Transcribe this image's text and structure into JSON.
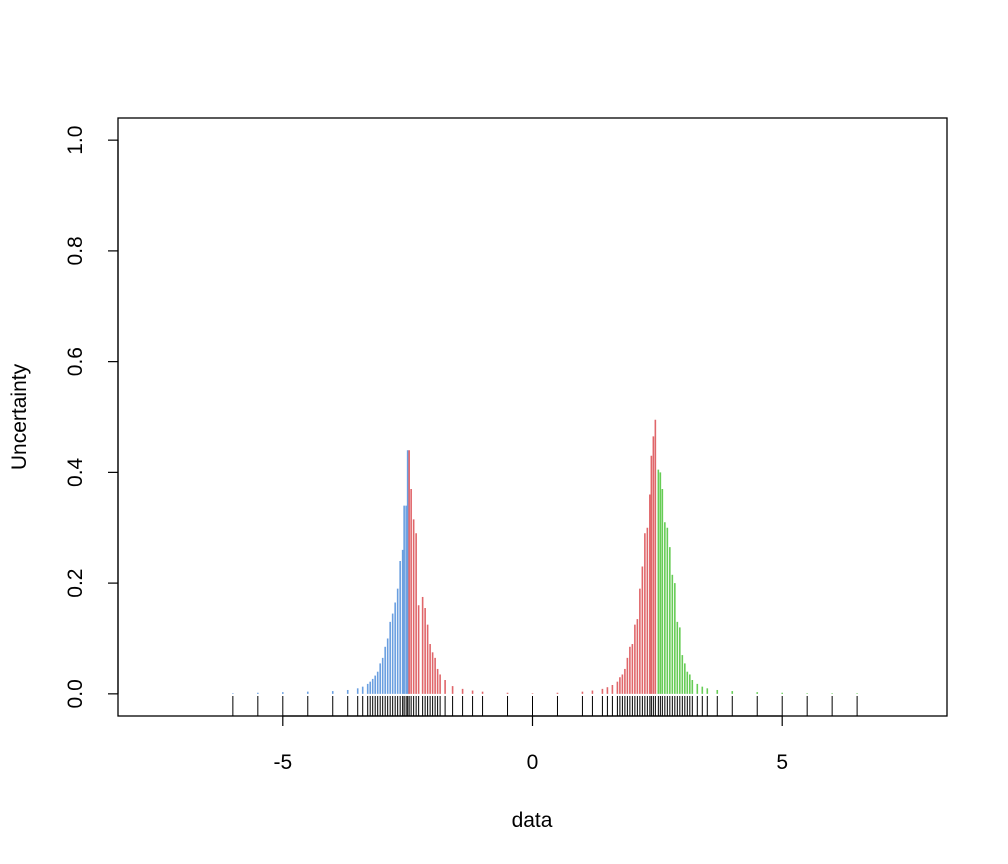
{
  "chart_data": {
    "type": "bar",
    "title": "",
    "xlabel": "data",
    "ylabel": "Uncertainty",
    "xlim": [
      -8.3,
      8.3
    ],
    "ylim": [
      -0.04,
      1.04
    ],
    "x_ticks": [
      -5,
      0,
      5
    ],
    "x_tick_labels": [
      "-5",
      "0",
      "5"
    ],
    "y_ticks": [
      0.0,
      0.2,
      0.4,
      0.6,
      0.8,
      1.0
    ],
    "y_tick_labels": [
      "0.0",
      "0.2",
      "0.4",
      "0.6",
      "0.8",
      "1.0"
    ],
    "grid": false,
    "legend": "none",
    "series": [
      {
        "color": "#6a9fe0",
        "x": [
          -6.0,
          -5.5,
          -5.0,
          -4.5,
          -4.0,
          -3.7,
          -3.5,
          -3.4,
          -3.3,
          -3.25,
          -3.2,
          -3.15,
          -3.1,
          -3.05,
          -3.0,
          -2.95,
          -2.9,
          -2.85,
          -2.8,
          -2.75,
          -2.7,
          -2.65,
          -2.6,
          -2.57,
          -2.53,
          -2.5
        ],
        "values": [
          0.001,
          0.002,
          0.003,
          0.004,
          0.005,
          0.007,
          0.01,
          0.013,
          0.018,
          0.022,
          0.027,
          0.033,
          0.04,
          0.055,
          0.065,
          0.085,
          0.1,
          0.13,
          0.145,
          0.165,
          0.19,
          0.24,
          0.26,
          0.34,
          0.34,
          0.44
        ]
      },
      {
        "color": "#e0666a",
        "x": [
          -2.47,
          -2.43,
          -2.38,
          -2.33,
          -2.28,
          -2.2,
          -2.15,
          -2.1,
          -2.05,
          -2.0,
          -1.95,
          -1.9,
          -1.85,
          -1.75,
          -1.6,
          -1.4,
          -1.2,
          -1.0,
          -0.5,
          0.0,
          0.5,
          1.0,
          1.2,
          1.4,
          1.5,
          1.6,
          1.7,
          1.75,
          1.8,
          1.85,
          1.9,
          1.95,
          2.0,
          2.05,
          2.1,
          2.15,
          2.2,
          2.25,
          2.3,
          2.35,
          2.38,
          2.42,
          2.46
        ],
        "values": [
          0.44,
          0.37,
          0.315,
          0.29,
          0.16,
          0.175,
          0.155,
          0.125,
          0.09,
          0.075,
          0.065,
          0.045,
          0.035,
          0.025,
          0.014,
          0.009,
          0.006,
          0.004,
          0.002,
          0.001,
          0.002,
          0.004,
          0.006,
          0.009,
          0.012,
          0.016,
          0.022,
          0.03,
          0.035,
          0.045,
          0.065,
          0.085,
          0.09,
          0.125,
          0.135,
          0.19,
          0.23,
          0.29,
          0.3,
          0.36,
          0.43,
          0.465,
          0.495
        ]
      },
      {
        "color": "#66cc55",
        "x": [
          2.52,
          2.56,
          2.6,
          2.65,
          2.7,
          2.75,
          2.8,
          2.85,
          2.9,
          2.95,
          3.0,
          3.05,
          3.1,
          3.15,
          3.2,
          3.3,
          3.4,
          3.5,
          3.7,
          4.0,
          4.5,
          5.0,
          5.5,
          6.0,
          6.5
        ],
        "values": [
          0.405,
          0.4,
          0.37,
          0.31,
          0.3,
          0.265,
          0.215,
          0.2,
          0.13,
          0.12,
          0.07,
          0.055,
          0.04,
          0.035,
          0.025,
          0.018,
          0.013,
          0.01,
          0.007,
          0.005,
          0.003,
          0.002,
          0.001,
          0.001,
          0.001
        ]
      }
    ]
  }
}
